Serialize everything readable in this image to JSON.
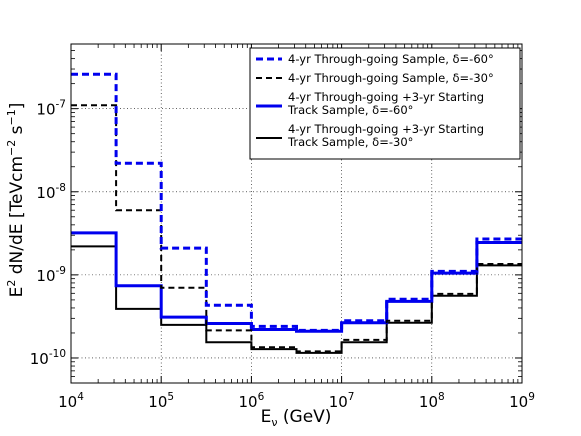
{
  "chart_data": {
    "type": "line",
    "step": true,
    "xscale": "log",
    "yscale": "log",
    "xlim": [
      10000,
      1000000000
    ],
    "ylim": [
      5e-11,
      6e-07
    ],
    "xlabel": "E_ν (GeV)",
    "ylabel": "E² dN/dE [TeVcm⁻² s⁻¹]",
    "grid": true,
    "legend_position": "top-right",
    "bin_edges": [
      10000,
      31623,
      100000,
      316228,
      1000000,
      3162278,
      10000000,
      31622777,
      100000000,
      316227766,
      1000000000
    ],
    "x_ticks": [
      {
        "value": 10000,
        "base": "10",
        "exp": "4"
      },
      {
        "value": 100000,
        "base": "10",
        "exp": "5"
      },
      {
        "value": 1000000,
        "base": "10",
        "exp": "6"
      },
      {
        "value": 10000000,
        "base": "10",
        "exp": "7"
      },
      {
        "value": 100000000,
        "base": "10",
        "exp": "8"
      },
      {
        "value": 1000000000,
        "base": "10",
        "exp": "9"
      }
    ],
    "y_ticks": [
      {
        "value": 1e-10,
        "base": "10",
        "exp": "-10"
      },
      {
        "value": 1e-09,
        "base": "10",
        "exp": "-9"
      },
      {
        "value": 1e-08,
        "base": "10",
        "exp": "-8"
      },
      {
        "value": 1e-07,
        "base": "10",
        "exp": "-7"
      }
    ],
    "series": [
      {
        "name": "4-yr Through-going Sample, δ=-60°",
        "color": "#0000ee",
        "style": "dashed",
        "width": 3,
        "values": [
          2.6e-07,
          2.2e-08,
          2.1e-09,
          4.3e-10,
          2.4e-10,
          2.15e-10,
          2.8e-10,
          5.1e-10,
          1.1e-09,
          2.7e-09
        ]
      },
      {
        "name": "4-yr Through-going Sample, δ=-30°",
        "color": "#000000",
        "style": "dashed",
        "width": 2,
        "values": [
          1.1e-07,
          6e-09,
          7e-10,
          2.15e-10,
          1.35e-10,
          1.2e-10,
          1.65e-10,
          2.8e-10,
          5.9e-10,
          1.35e-09
        ]
      },
      {
        "name": "4-yr Through-going +3-yr Starting Track Sample, δ=-60°",
        "legend_lines": [
          "4-yr Through-going +3-yr Starting",
          "Track Sample, δ=-60°"
        ],
        "color": "#0000ee",
        "style": "solid",
        "width": 3,
        "values": [
          3.2e-09,
          7.4e-10,
          3.1e-10,
          2.6e-10,
          2.2e-10,
          2.1e-10,
          2.65e-10,
          4.8e-10,
          1.05e-09,
          2.45e-09
        ]
      },
      {
        "name": "4-yr Through-going +3-yr Starting Track Sample, δ=-30°",
        "legend_lines": [
          "4-yr Through-going +3-yr Starting",
          "Track Sample, δ=-30°"
        ],
        "color": "#000000",
        "style": "solid",
        "width": 2,
        "values": [
          2.2e-09,
          3.9e-10,
          2.5e-10,
          1.55e-10,
          1.28e-10,
          1.15e-10,
          1.55e-10,
          2.65e-10,
          5.6e-10,
          1.3e-09
        ]
      }
    ]
  }
}
